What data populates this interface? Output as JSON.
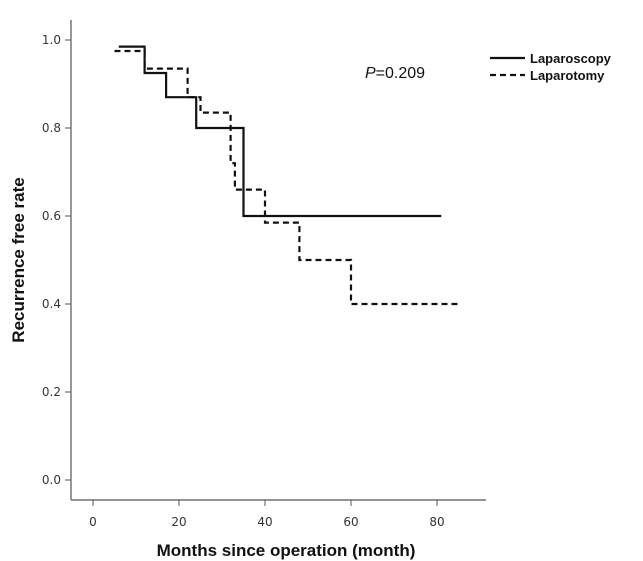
{
  "chart_data": {
    "type": "line",
    "title": "",
    "xlabel": "Months since operation (month)",
    "ylabel": "Recurrence free rate",
    "xlim": [
      0,
      95
    ],
    "ylim": [
      0,
      1.05
    ],
    "x_ticks": [
      "0",
      "20",
      "40",
      "60",
      "80"
    ],
    "x_tick_values": [
      0,
      20,
      40,
      60,
      80
    ],
    "y_ticks": [
      "0.0",
      "0.2",
      "0.4",
      "0.6",
      "0.8",
      "1.0"
    ],
    "y_tick_values": [
      0,
      0.2,
      0.4,
      0.6,
      0.8,
      1.0
    ],
    "annotation": {
      "label_italic": "P",
      "label_rest": "=0.209"
    },
    "legend_position": "top-right",
    "series": [
      {
        "name": "Laparoscopy",
        "style": "solid",
        "color": "#111111",
        "step_points": [
          [
            6,
            0.985
          ],
          [
            12,
            0.985
          ],
          [
            12,
            0.925
          ],
          [
            17,
            0.925
          ],
          [
            17,
            0.87
          ],
          [
            24,
            0.87
          ],
          [
            24,
            0.8
          ],
          [
            35,
            0.8
          ],
          [
            35,
            0.6
          ],
          [
            81,
            0.6
          ]
        ]
      },
      {
        "name": "Laparotomy",
        "style": "dashed",
        "color": "#111111",
        "step_points": [
          [
            5,
            0.975
          ],
          [
            12,
            0.975
          ],
          [
            12,
            0.935
          ],
          [
            22,
            0.935
          ],
          [
            22,
            0.87
          ],
          [
            25,
            0.87
          ],
          [
            25,
            0.835
          ],
          [
            32,
            0.835
          ],
          [
            32,
            0.72
          ],
          [
            33,
            0.72
          ],
          [
            33,
            0.66
          ],
          [
            40,
            0.66
          ],
          [
            40,
            0.585
          ],
          [
            48,
            0.585
          ],
          [
            48,
            0.5
          ],
          [
            60,
            0.5
          ],
          [
            60,
            0.4
          ],
          [
            85,
            0.4
          ]
        ]
      }
    ]
  }
}
